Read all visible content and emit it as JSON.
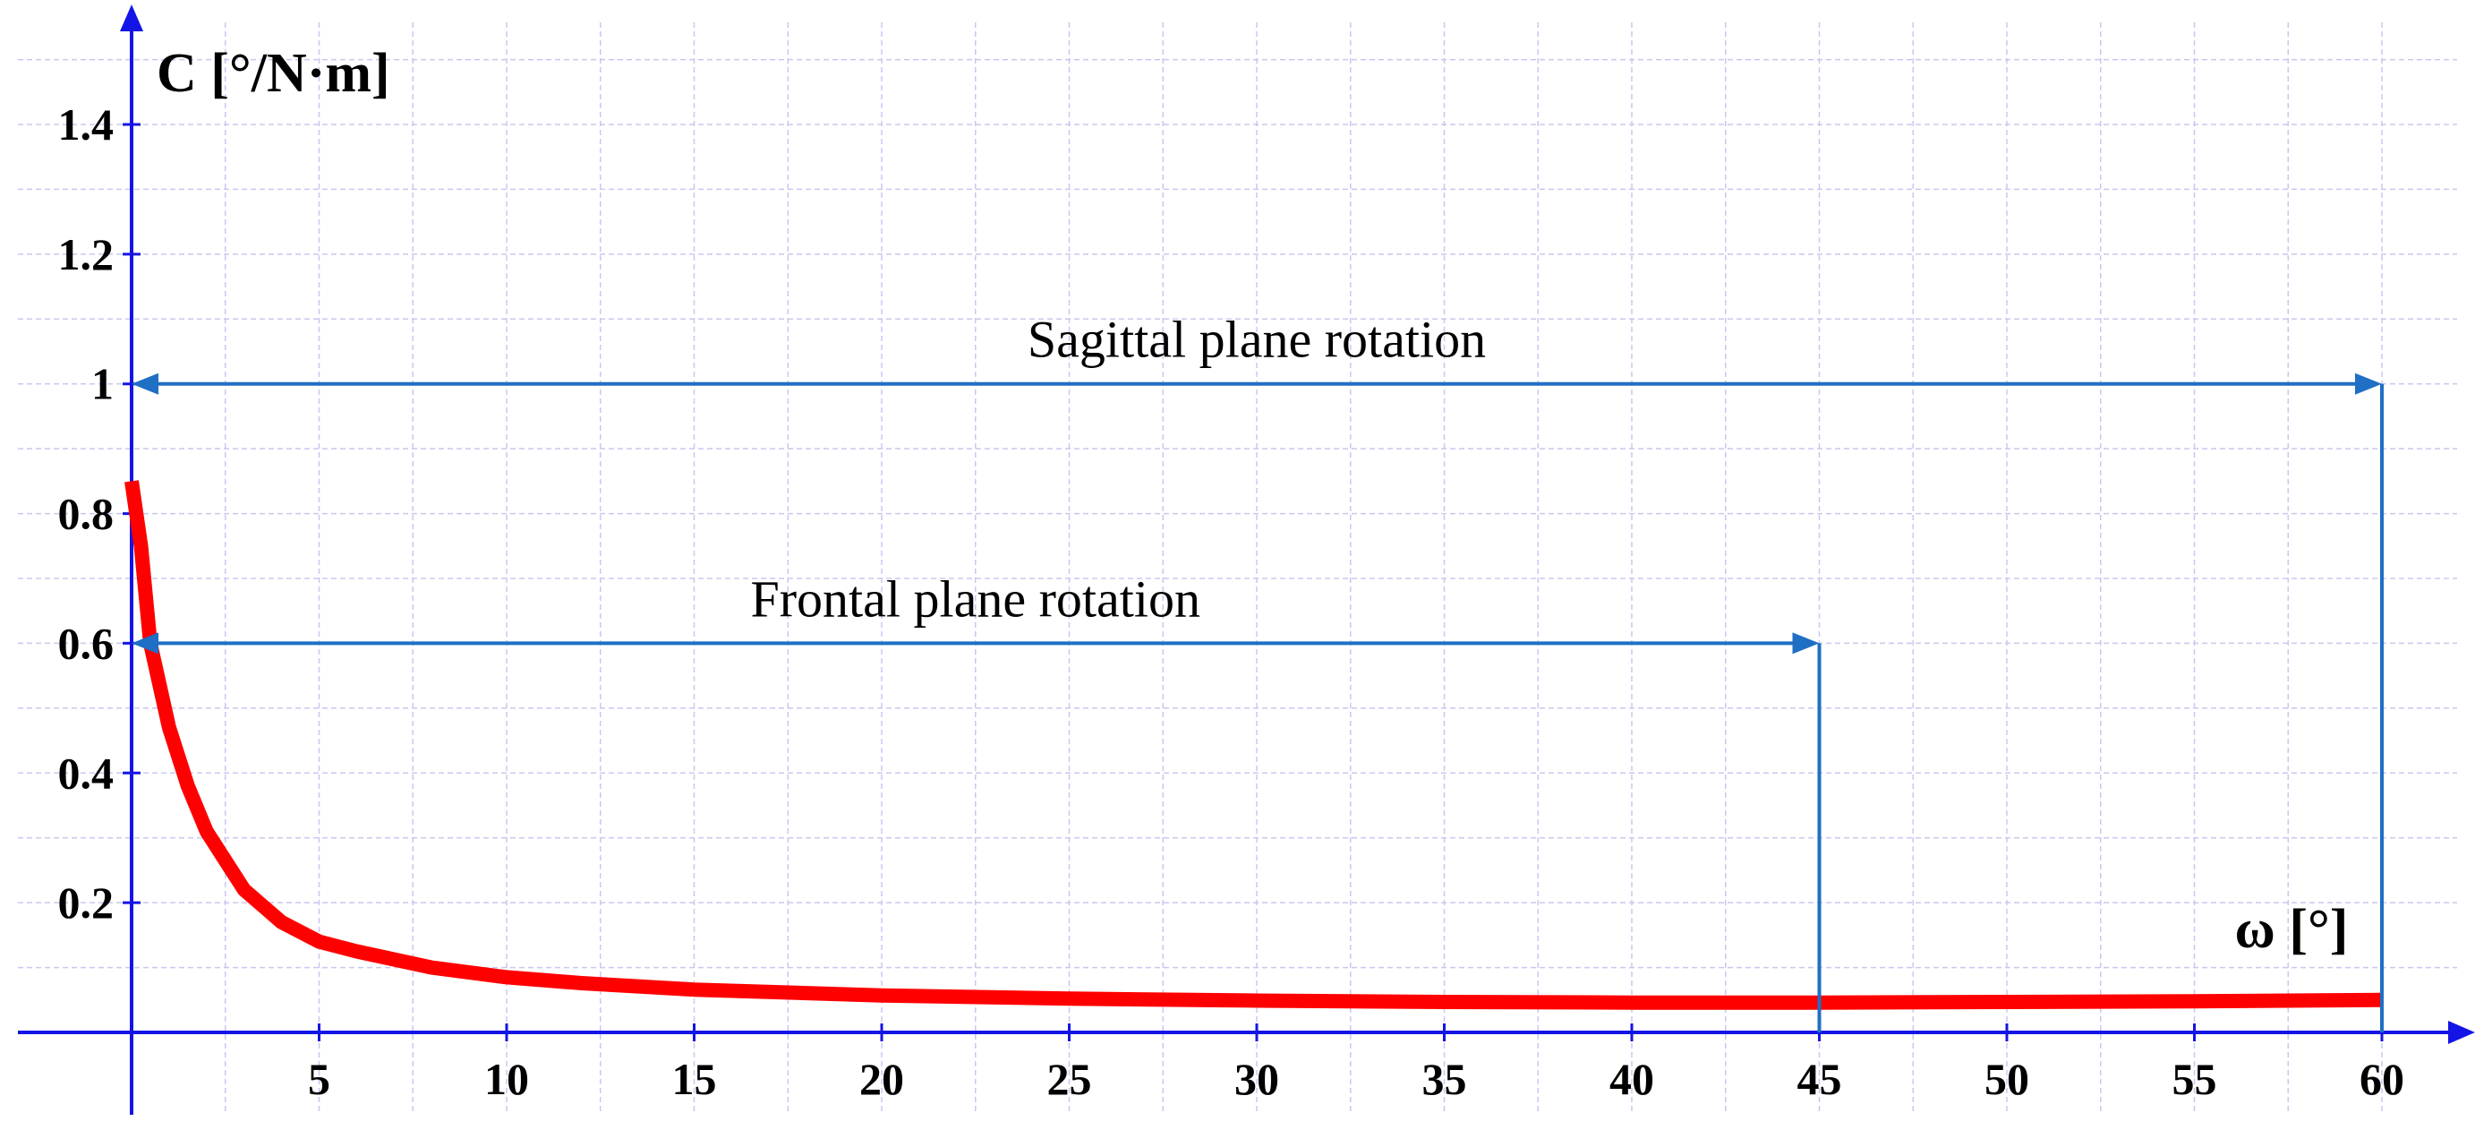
{
  "chart_data": {
    "type": "line",
    "title": "",
    "xlabel": "ω [°]",
    "ylabel": "C [°/N·m]",
    "xlim": [
      0,
      60
    ],
    "ylim": [
      0,
      1.4
    ],
    "grid": true,
    "x_ticks": [
      5,
      10,
      15,
      20,
      25,
      30,
      35,
      40,
      45,
      50,
      55,
      60
    ],
    "y_ticks": [
      0.2,
      0.4,
      0.6,
      0.8,
      1,
      1.2,
      1.4
    ],
    "series": [
      {
        "color": "#ff0000",
        "x": [
          0,
          0.25,
          0.5,
          1,
          1.5,
          2,
          3,
          4,
          5,
          6,
          8,
          10,
          12,
          15,
          20,
          25,
          30,
          35,
          40,
          45,
          50,
          55,
          60
        ],
        "y": [
          0.85,
          0.75,
          0.6,
          0.47,
          0.38,
          0.31,
          0.22,
          0.17,
          0.14,
          0.125,
          0.1,
          0.085,
          0.076,
          0.066,
          0.057,
          0.052,
          0.049,
          0.047,
          0.046,
          0.046,
          0.047,
          0.048,
          0.05
        ]
      }
    ],
    "annotations": [
      {
        "id": "sagittal",
        "text": "Sagittal plane rotation",
        "x_start": 0,
        "x_end": 60,
        "y": 1.0,
        "color": "#1f6fc5"
      },
      {
        "id": "frontal",
        "text": "Frontal plane rotation",
        "x_start": 0,
        "x_end": 45,
        "y": 0.6,
        "color": "#1f6fc5"
      }
    ],
    "colors": {
      "axis": "#1414e6",
      "grid": "#c8c8f0",
      "curve": "#ff0000",
      "annotation": "#1f6fc5"
    }
  }
}
